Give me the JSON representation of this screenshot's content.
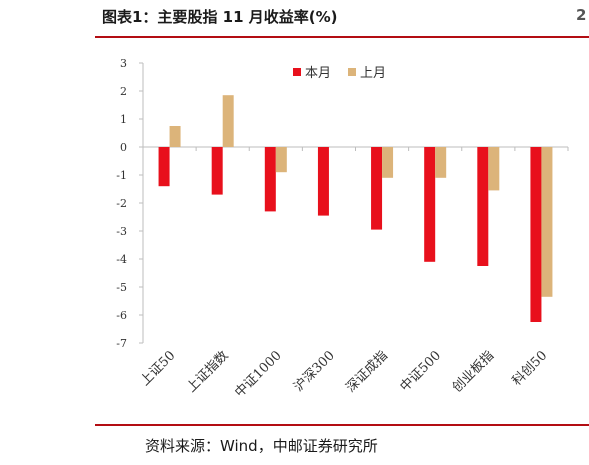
{
  "figure": {
    "title": "图表1：主要股指 11 月收益率(%)",
    "edge_glyph": "2",
    "source": "资料来源：Wind，中邮证券研究所"
  },
  "colors": {
    "series_current": "#e8101c",
    "series_previous": "#dcb47a",
    "rule": "#b30d13"
  },
  "chart_data": {
    "type": "bar",
    "title": "",
    "xlabel": "",
    "ylabel": "",
    "ylim": [
      -7,
      3
    ],
    "yticks": [
      "3",
      "2",
      "1",
      "0",
      "-1",
      "-2",
      "-3",
      "-4",
      "-5",
      "-6",
      "-7"
    ],
    "grid": false,
    "legend_position": "top-right",
    "categories": [
      "上证50",
      "上证指数",
      "中证1000",
      "沪深300",
      "深证成指",
      "中证500",
      "创业板指",
      "科创50"
    ],
    "series": [
      {
        "name": "本月",
        "values": [
          -1.4,
          -1.7,
          -2.3,
          -2.45,
          -2.95,
          -4.1,
          -4.25,
          -6.25
        ]
      },
      {
        "name": "上月",
        "values": [
          0.75,
          1.85,
          -0.9,
          null,
          -1.1,
          -1.1,
          -1.55,
          -5.35
        ]
      }
    ]
  }
}
